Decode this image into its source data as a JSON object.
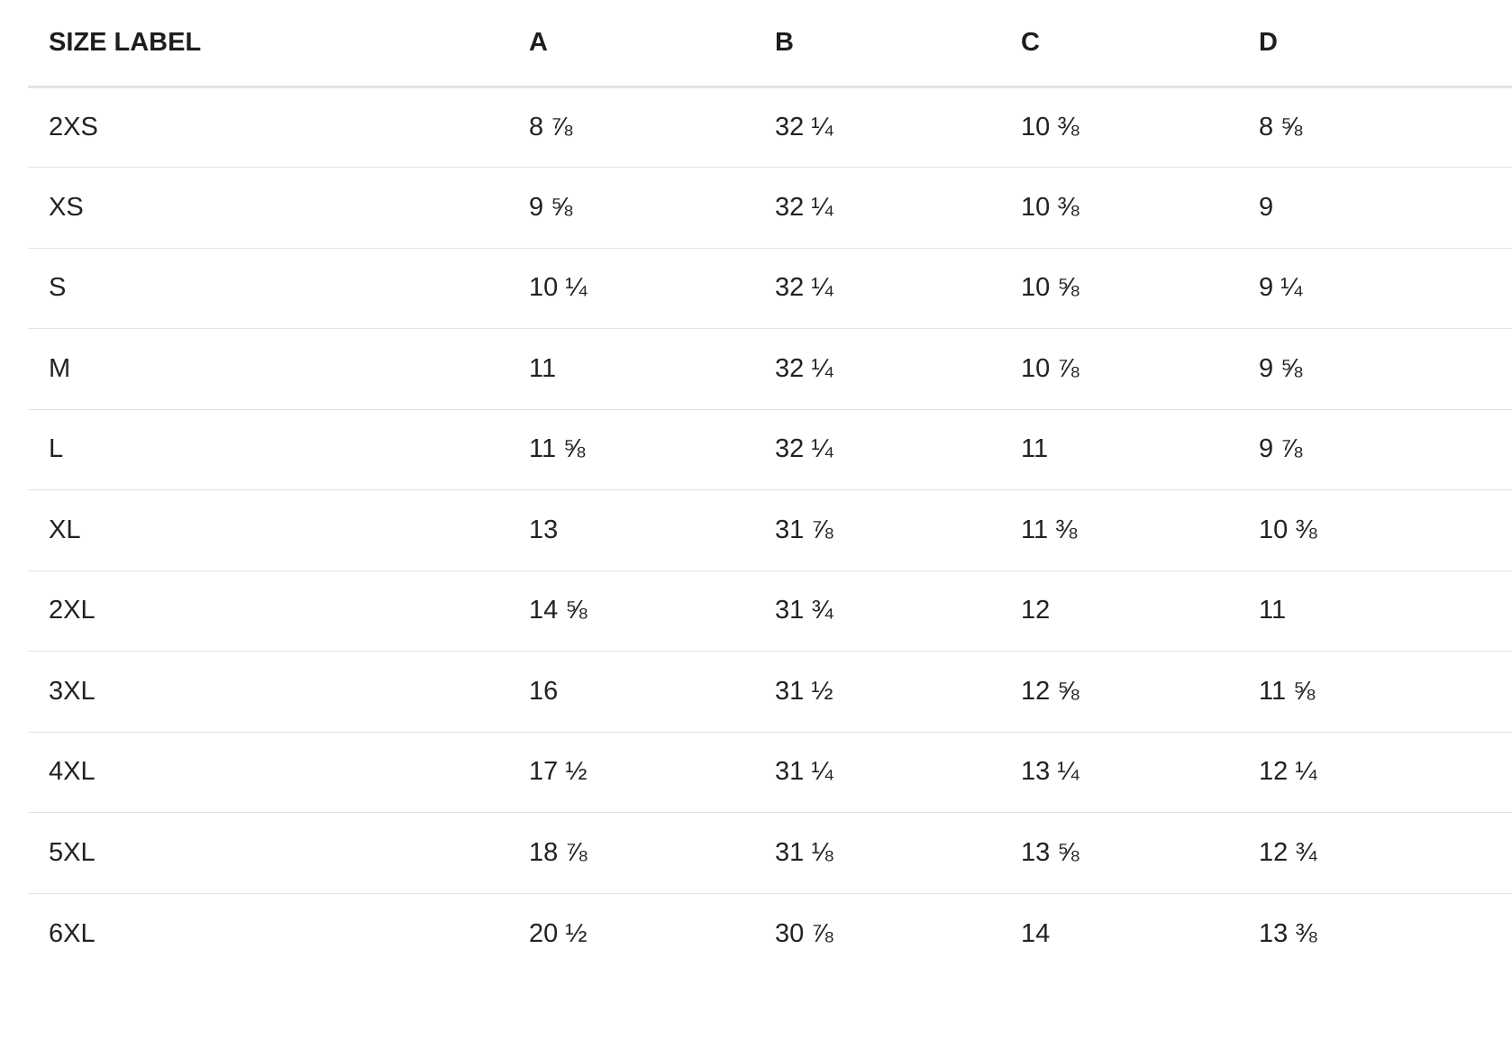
{
  "size_table": {
    "headers": [
      "SIZE LABEL",
      "A",
      "B",
      "C",
      "D"
    ],
    "rows": [
      [
        "2XS",
        "8 ⅞",
        "32 ¼",
        "10 ⅜",
        "8 ⅝"
      ],
      [
        "XS",
        "9 ⅝",
        "32 ¼",
        "10 ⅜",
        "9"
      ],
      [
        "S",
        "10 ¼",
        "32 ¼",
        "10 ⅝",
        "9 ¼"
      ],
      [
        "M",
        "11",
        "32 ¼",
        "10 ⅞",
        "9 ⅝"
      ],
      [
        "L",
        "11 ⅝",
        "32 ¼",
        "11",
        "9 ⅞"
      ],
      [
        "XL",
        "13",
        "31 ⅞",
        "11 ⅜",
        "10 ⅜"
      ],
      [
        "2XL",
        "14 ⅝",
        "31 ¾",
        "12",
        "11"
      ],
      [
        "3XL",
        "16",
        "31 ½",
        "12 ⅝",
        "11 ⅝"
      ],
      [
        "4XL",
        "17 ½",
        "31 ¼",
        "13 ¼",
        "12 ¼"
      ],
      [
        "5XL",
        "18 ⅞",
        "31 ⅛",
        "13 ⅝",
        "12 ¾"
      ],
      [
        "6XL",
        "20 ½",
        "30 ⅞",
        "14",
        "13 ⅜"
      ]
    ]
  }
}
